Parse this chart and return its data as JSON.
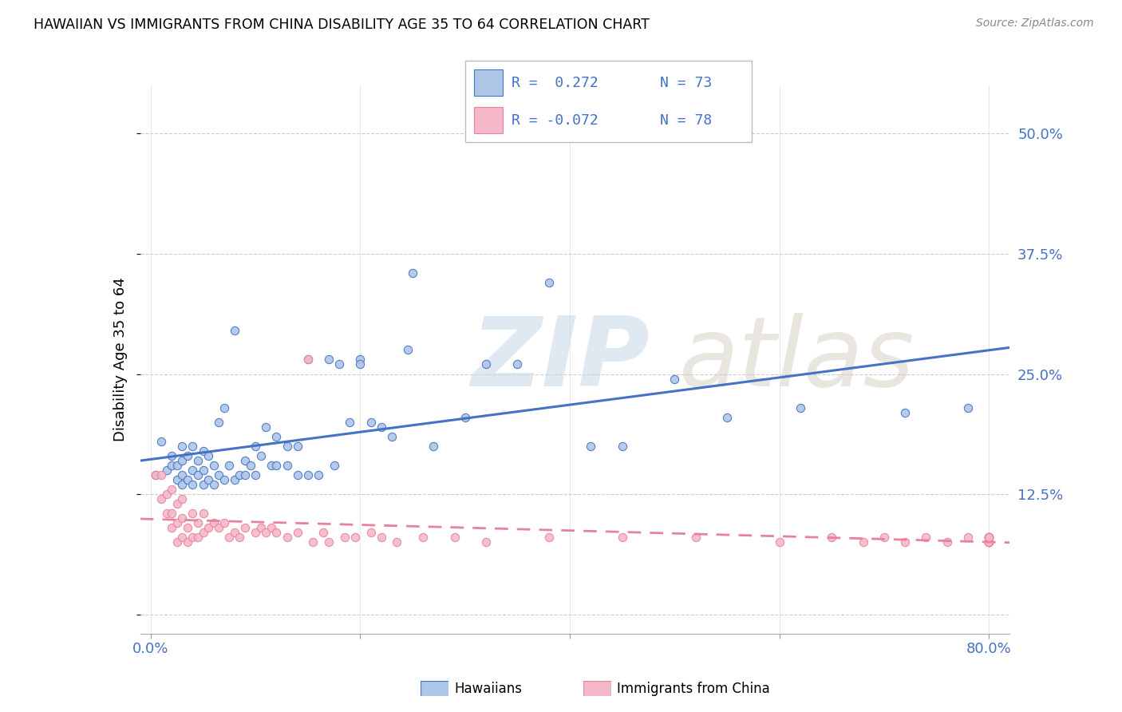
{
  "title": "HAWAIIAN VS IMMIGRANTS FROM CHINA DISABILITY AGE 35 TO 64 CORRELATION CHART",
  "source": "Source: ZipAtlas.com",
  "ylabel": "Disability Age 35 to 64",
  "color_hawaiian": "#aec6e8",
  "color_china": "#f4b8c8",
  "line_color_hawaiian": "#4472c4",
  "line_color_china": "#e8829a",
  "watermark_zip": "ZIP",
  "watermark_atlas": "atlas",
  "hawaiian_x": [
    0.005,
    0.01,
    0.015,
    0.02,
    0.02,
    0.025,
    0.025,
    0.03,
    0.03,
    0.03,
    0.03,
    0.035,
    0.035,
    0.04,
    0.04,
    0.04,
    0.045,
    0.045,
    0.05,
    0.05,
    0.05,
    0.055,
    0.055,
    0.06,
    0.06,
    0.065,
    0.065,
    0.07,
    0.07,
    0.075,
    0.08,
    0.08,
    0.085,
    0.09,
    0.09,
    0.095,
    0.1,
    0.1,
    0.105,
    0.11,
    0.115,
    0.12,
    0.12,
    0.13,
    0.13,
    0.14,
    0.14,
    0.15,
    0.15,
    0.16,
    0.17,
    0.175,
    0.18,
    0.19,
    0.2,
    0.2,
    0.21,
    0.22,
    0.23,
    0.245,
    0.25,
    0.27,
    0.3,
    0.32,
    0.35,
    0.38,
    0.42,
    0.45,
    0.5,
    0.55,
    0.62,
    0.72,
    0.78
  ],
  "hawaiian_y": [
    0.145,
    0.18,
    0.15,
    0.155,
    0.165,
    0.14,
    0.155,
    0.135,
    0.145,
    0.16,
    0.175,
    0.14,
    0.165,
    0.135,
    0.15,
    0.175,
    0.145,
    0.16,
    0.135,
    0.15,
    0.17,
    0.14,
    0.165,
    0.135,
    0.155,
    0.2,
    0.145,
    0.14,
    0.215,
    0.155,
    0.14,
    0.295,
    0.145,
    0.145,
    0.16,
    0.155,
    0.145,
    0.175,
    0.165,
    0.195,
    0.155,
    0.155,
    0.185,
    0.155,
    0.175,
    0.145,
    0.175,
    0.145,
    0.265,
    0.145,
    0.265,
    0.155,
    0.26,
    0.2,
    0.265,
    0.26,
    0.2,
    0.195,
    0.185,
    0.275,
    0.355,
    0.175,
    0.205,
    0.26,
    0.26,
    0.345,
    0.175,
    0.175,
    0.245,
    0.205,
    0.215,
    0.21,
    0.215
  ],
  "china_x": [
    0.005,
    0.01,
    0.01,
    0.015,
    0.015,
    0.02,
    0.02,
    0.02,
    0.025,
    0.025,
    0.025,
    0.03,
    0.03,
    0.03,
    0.035,
    0.035,
    0.04,
    0.04,
    0.045,
    0.045,
    0.05,
    0.05,
    0.055,
    0.06,
    0.065,
    0.07,
    0.075,
    0.08,
    0.085,
    0.09,
    0.1,
    0.105,
    0.11,
    0.115,
    0.12,
    0.13,
    0.14,
    0.15,
    0.155,
    0.165,
    0.17,
    0.185,
    0.195,
    0.21,
    0.22,
    0.235,
    0.26,
    0.29,
    0.32,
    0.38,
    0.45,
    0.52,
    0.6,
    0.65,
    0.68,
    0.7,
    0.72,
    0.74,
    0.76,
    0.78,
    0.8,
    0.8,
    0.8,
    0.8,
    0.8,
    0.8,
    0.8,
    0.8,
    0.8,
    0.8,
    0.8,
    0.8,
    0.8,
    0.8,
    0.8,
    0.8,
    0.8,
    0.8
  ],
  "china_y": [
    0.145,
    0.12,
    0.145,
    0.105,
    0.125,
    0.09,
    0.105,
    0.13,
    0.075,
    0.095,
    0.115,
    0.08,
    0.1,
    0.12,
    0.075,
    0.09,
    0.08,
    0.105,
    0.08,
    0.095,
    0.085,
    0.105,
    0.09,
    0.095,
    0.09,
    0.095,
    0.08,
    0.085,
    0.08,
    0.09,
    0.085,
    0.09,
    0.085,
    0.09,
    0.085,
    0.08,
    0.085,
    0.265,
    0.075,
    0.085,
    0.075,
    0.08,
    0.08,
    0.085,
    0.08,
    0.075,
    0.08,
    0.08,
    0.075,
    0.08,
    0.08,
    0.08,
    0.075,
    0.08,
    0.075,
    0.08,
    0.075,
    0.08,
    0.075,
    0.08,
    0.075,
    0.08,
    0.075,
    0.08,
    0.075,
    0.08,
    0.075,
    0.08,
    0.075,
    0.08,
    0.075,
    0.08,
    0.075,
    0.08,
    0.075,
    0.08,
    0.075,
    0.08
  ],
  "xlim": [
    -0.01,
    0.82
  ],
  "ylim": [
    -0.02,
    0.55
  ],
  "ytick_vals": [
    0.0,
    0.125,
    0.25,
    0.375,
    0.5
  ],
  "ytick_labels": [
    "",
    "12.5%",
    "25.0%",
    "37.5%",
    "50.0%"
  ],
  "xtick_vals": [
    0.0,
    0.2,
    0.4,
    0.6,
    0.8
  ],
  "xtick_show": [
    "0.0%",
    "",
    "",
    "",
    "80.0%"
  ],
  "legend_r1_label": "R =  0.272",
  "legend_n1_label": "N = 73",
  "legend_r2_label": "R = -0.072",
  "legend_n2_label": "N = 78",
  "bottom_label1": "Hawaiians",
  "bottom_label2": "Immigrants from China"
}
